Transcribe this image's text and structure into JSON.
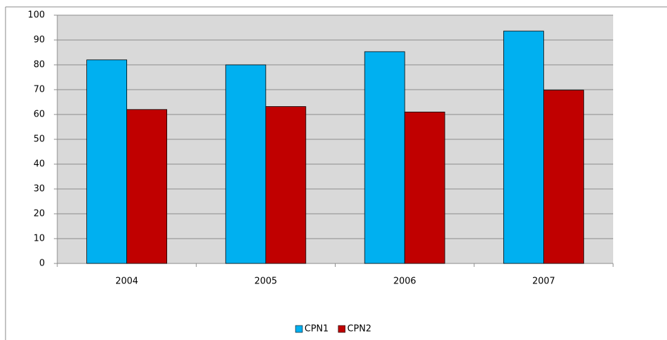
{
  "chart_data": {
    "type": "bar",
    "categories": [
      "2004",
      "2005",
      "2006",
      "2007"
    ],
    "series": [
      {
        "name": "CPN1",
        "color": "#00b0f0",
        "values": [
          82,
          80,
          85.3,
          93.6
        ]
      },
      {
        "name": "CPN2",
        "color": "#c00000",
        "values": [
          62,
          63.2,
          61,
          69.8
        ]
      }
    ],
    "ylim": [
      0,
      100
    ],
    "yticks": [
      0,
      10,
      20,
      30,
      40,
      50,
      60,
      70,
      80,
      90,
      100
    ],
    "grid": true,
    "legend": "bottom"
  }
}
